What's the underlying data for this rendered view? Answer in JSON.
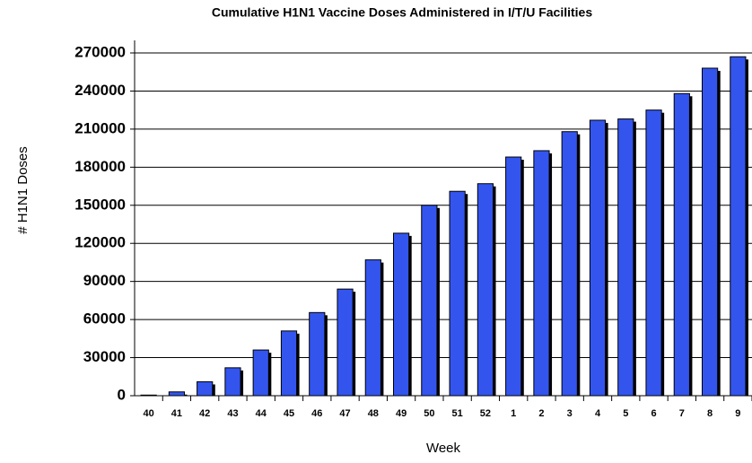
{
  "chart_data": {
    "type": "bar",
    "title": "Cumulative H1N1 Vaccine Doses Administered in I/T/U Facilities",
    "x_label": "Week",
    "y_label": "# H1N1 Doses",
    "categories": [
      "40",
      "41",
      "42",
      "43",
      "44",
      "45",
      "46",
      "47",
      "48",
      "49",
      "50",
      "51",
      "52",
      "1",
      "2",
      "3",
      "4",
      "5",
      "6",
      "7",
      "8",
      "9"
    ],
    "values": [
      500,
      3000,
      11000,
      22000,
      36000,
      51000,
      65500,
      84000,
      107000,
      128000,
      150000,
      161000,
      167000,
      188000,
      193000,
      208000,
      217000,
      218000,
      225000,
      238000,
      258000,
      267000
    ],
    "color": "#3355ee",
    "ylim": [
      0,
      270000
    ],
    "yticks": [
      0,
      30000,
      60000,
      90000,
      120000,
      150000,
      180000,
      210000,
      240000,
      270000
    ],
    "grid": true
  }
}
